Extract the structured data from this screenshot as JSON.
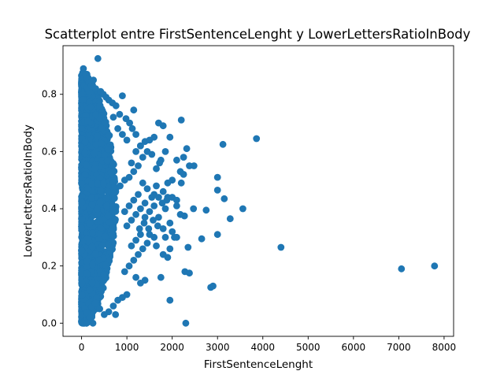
{
  "chart_data": {
    "type": "scatter",
    "title": "Scatterplot entre FirstSentenceLenght y LowerLettersRatioInBody",
    "xlabel": "FirstSentenceLenght",
    "ylabel": "LowerLettersRatioInBody",
    "xlim": [
      -410,
      8210
    ],
    "ylim": [
      -0.046,
      0.97
    ],
    "xticks": [
      0,
      1000,
      2000,
      3000,
      4000,
      5000,
      6000,
      7000,
      8000
    ],
    "xtick_labels": [
      "0",
      "1000",
      "2000",
      "3000",
      "4000",
      "5000",
      "6000",
      "7000",
      "8000"
    ],
    "yticks": [
      0.0,
      0.2,
      0.4,
      0.6,
      0.8
    ],
    "ytick_labels": [
      "0.0",
      "0.2",
      "0.4",
      "0.6",
      "0.8"
    ],
    "grid": false,
    "legend": false,
    "marker_color": "#1f77b4",
    "series": [
      {
        "values": [
          [
            20,
            0.0
          ],
          [
            60,
            0.0
          ],
          [
            110,
            0.0
          ],
          [
            150,
            0.005
          ],
          [
            250,
            0.0
          ],
          [
            40,
            0.89
          ],
          [
            25,
            0.875
          ],
          [
            60,
            0.86
          ],
          [
            90,
            0.87
          ],
          [
            120,
            0.855
          ],
          [
            160,
            0.84
          ],
          [
            210,
            0.83
          ],
          [
            260,
            0.85
          ],
          [
            310,
            0.82
          ],
          [
            360,
            0.925
          ],
          [
            420,
            0.81
          ],
          [
            480,
            0.8
          ],
          [
            540,
            0.79
          ],
          [
            600,
            0.78
          ],
          [
            680,
            0.77
          ],
          [
            760,
            0.76
          ],
          [
            900,
            0.795
          ],
          [
            840,
            0.73
          ],
          [
            1150,
            0.745
          ],
          [
            980,
            0.715
          ],
          [
            1060,
            0.7
          ],
          [
            1120,
            0.68
          ],
          [
            1200,
            0.66
          ],
          [
            1300,
            0.62
          ],
          [
            1400,
            0.635
          ],
          [
            1500,
            0.64
          ],
          [
            1600,
            0.65
          ],
          [
            1700,
            0.7
          ],
          [
            1800,
            0.69
          ],
          [
            1950,
            0.65
          ],
          [
            1850,
            0.6
          ],
          [
            2200,
            0.71
          ],
          [
            2250,
            0.58
          ],
          [
            2320,
            0.61
          ],
          [
            2100,
            0.57
          ],
          [
            1750,
            0.57
          ],
          [
            1720,
            0.56
          ],
          [
            1650,
            0.54
          ],
          [
            1550,
            0.59
          ],
          [
            1450,
            0.6
          ],
          [
            1350,
            0.58
          ],
          [
            1250,
            0.55
          ],
          [
            1150,
            0.53
          ],
          [
            1050,
            0.51
          ],
          [
            950,
            0.5
          ],
          [
            850,
            0.48
          ],
          [
            2180,
            0.53
          ],
          [
            2250,
            0.52
          ],
          [
            2380,
            0.55
          ],
          [
            2480,
            0.55
          ],
          [
            2000,
            0.5
          ],
          [
            1900,
            0.49
          ],
          [
            1650,
            0.48
          ],
          [
            1600,
            0.45
          ],
          [
            1400,
            0.42
          ],
          [
            1300,
            0.4
          ],
          [
            1200,
            0.38
          ],
          [
            1100,
            0.36
          ],
          [
            1000,
            0.34
          ],
          [
            1900,
            0.44
          ],
          [
            2000,
            0.44
          ],
          [
            2100,
            0.43
          ],
          [
            2200,
            0.49
          ],
          [
            1850,
            0.4
          ],
          [
            2100,
            0.41
          ],
          [
            2180,
            0.38
          ],
          [
            2270,
            0.375
          ],
          [
            2470,
            0.4
          ],
          [
            2750,
            0.395
          ],
          [
            1950,
            0.35
          ],
          [
            1800,
            0.33
          ],
          [
            1700,
            0.37
          ],
          [
            1600,
            0.3
          ],
          [
            1500,
            0.31
          ],
          [
            1450,
            0.28
          ],
          [
            1350,
            0.26
          ],
          [
            1250,
            0.24
          ],
          [
            1150,
            0.22
          ],
          [
            1050,
            0.2
          ],
          [
            950,
            0.18
          ],
          [
            1750,
            0.16
          ],
          [
            1850,
            0.3
          ],
          [
            2050,
            0.3
          ],
          [
            2000,
            0.32
          ],
          [
            2100,
            0.3
          ],
          [
            1950,
            0.26
          ],
          [
            1900,
            0.23
          ],
          [
            2350,
            0.265
          ],
          [
            2650,
            0.295
          ],
          [
            3000,
            0.31
          ],
          [
            1800,
            0.24
          ],
          [
            1650,
            0.27
          ],
          [
            2280,
            0.18
          ],
          [
            2380,
            0.175
          ],
          [
            2850,
            0.125
          ],
          [
            2900,
            0.13
          ],
          [
            1950,
            0.08
          ],
          [
            1400,
            0.15
          ],
          [
            1300,
            0.14
          ],
          [
            1200,
            0.16
          ],
          [
            1000,
            0.1
          ],
          [
            900,
            0.09
          ],
          [
            800,
            0.08
          ],
          [
            700,
            0.06
          ],
          [
            600,
            0.04
          ],
          [
            500,
            0.03
          ],
          [
            400,
            0.05
          ],
          [
            750,
            0.03
          ],
          [
            300,
            0.07
          ],
          [
            200,
            0.02
          ],
          [
            2300,
            0.0
          ],
          [
            3000,
            0.51
          ],
          [
            3000,
            0.465
          ],
          [
            3150,
            0.435
          ],
          [
            3120,
            0.625
          ],
          [
            3280,
            0.365
          ],
          [
            3560,
            0.4
          ],
          [
            3860,
            0.645
          ],
          [
            4400,
            0.265
          ],
          [
            7060,
            0.19
          ],
          [
            7790,
            0.2
          ],
          [
            1280,
            0.33
          ],
          [
            1380,
            0.35
          ],
          [
            1480,
            0.33
          ],
          [
            1580,
            0.36
          ],
          [
            1680,
            0.34
          ],
          [
            1780,
            0.42
          ],
          [
            1880,
            0.43
          ],
          [
            1550,
            0.44
          ],
          [
            1450,
            0.47
          ],
          [
            1350,
            0.49
          ],
          [
            1250,
            0.45
          ],
          [
            1150,
            0.43
          ],
          [
            1050,
            0.41
          ],
          [
            950,
            0.39
          ],
          [
            1100,
            0.56
          ],
          [
            1200,
            0.6
          ],
          [
            1300,
            0.62
          ],
          [
            1000,
            0.64
          ],
          [
            900,
            0.66
          ],
          [
            800,
            0.68
          ],
          [
            700,
            0.72
          ],
          [
            1100,
            0.27
          ],
          [
            1200,
            0.29
          ],
          [
            1300,
            0.31
          ],
          [
            1400,
            0.37
          ],
          [
            1500,
            0.39
          ],
          [
            1600,
            0.41
          ],
          [
            1700,
            0.44
          ],
          [
            1800,
            0.46
          ]
        ]
      }
    ]
  }
}
